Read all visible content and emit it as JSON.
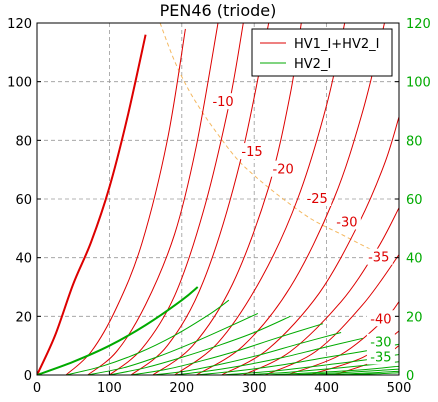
{
  "chart_data": {
    "type": "line",
    "title": "PEN46  (triode)",
    "xlabel": "",
    "ylabel": "",
    "xlim": [
      0,
      500
    ],
    "ylim": [
      0,
      120
    ],
    "right_ylim": [
      0,
      120
    ],
    "grid": true,
    "x_ticks": [
      "0",
      "100",
      "200",
      "300",
      "400",
      "500"
    ],
    "y_ticks": [
      "0",
      "20",
      "40",
      "60",
      "80",
      "100",
      "120"
    ],
    "right_y_ticks": [
      "0",
      "20",
      "40",
      "60",
      "80",
      "100",
      "120"
    ],
    "legend": {
      "position": "top-right",
      "entries": [
        {
          "label": "HV1_I+HV2_I",
          "color": "#dd0000"
        },
        {
          "label": "HV2_I",
          "color": "#00aa00"
        }
      ]
    },
    "colors": {
      "total": "#dd0000",
      "screen": "#00aa00",
      "max_dissipation": "#f4b860",
      "axes": "#000000",
      "grid": "#9a9a9a",
      "right_ticks": "#00aa00"
    },
    "series": [
      {
        "group": "total",
        "grid_v": 0,
        "x": [
          0,
          25,
          50,
          75,
          100,
          125,
          150
        ],
        "y": [
          0,
          13.5,
          31,
          45.5,
          64,
          88,
          116
        ],
        "bold": true
      },
      {
        "group": "total",
        "grid_v": -5,
        "x": [
          40,
          75,
          110,
          145,
          180,
          205
        ],
        "y": [
          0,
          8,
          23,
          45,
          80,
          118
        ]
      },
      {
        "group": "total",
        "grid_v": -10,
        "x": [
          70,
          110,
          150,
          190,
          220,
          250
        ],
        "y": [
          0,
          8,
          24,
          48,
          78,
          120
        ]
      },
      {
        "group": "total",
        "grid_v": -15,
        "x": [
          100,
          145,
          190,
          230,
          265,
          285
        ],
        "y": [
          0,
          9,
          27,
          56,
          92,
          120
        ]
      },
      {
        "group": "total",
        "grid_v": -20,
        "x": [
          130,
          180,
          230,
          280,
          320
        ],
        "y": [
          0,
          10,
          32,
          72,
          120
        ]
      },
      {
        "group": "total",
        "grid_v": -25,
        "x": [
          160,
          215,
          270,
          320,
          350,
          365
        ],
        "y": [
          0,
          10,
          31,
          64,
          96,
          120
        ]
      },
      {
        "group": "total",
        "grid_v": -30,
        "x": [
          190,
          250,
          310,
          360,
          400,
          425
        ],
        "y": [
          0,
          11,
          33,
          60,
          92,
          120
        ]
      },
      {
        "group": "total",
        "grid_v": -35,
        "x": [
          220,
          285,
          350,
          410,
          450,
          480
        ],
        "y": [
          0,
          10,
          30,
          60,
          90,
          120
        ]
      },
      {
        "group": "total",
        "grid_v": -40,
        "x": [
          255,
          320,
          390,
          445,
          480,
          500
        ],
        "y": [
          0,
          9,
          28,
          52,
          72,
          88
        ]
      },
      {
        "group": "total",
        "grid_v": -45,
        "x": [
          285,
          350,
          420,
          470,
          500
        ],
        "y": [
          0,
          8,
          25,
          43,
          57
        ]
      },
      {
        "group": "total",
        "grid_v": -50,
        "x": [
          315,
          385,
          450,
          500
        ],
        "y": [
          0,
          8,
          24,
          41
        ]
      },
      {
        "group": "total",
        "grid_v": -55,
        "x": [
          345,
          420,
          480,
          500
        ],
        "y": [
          0,
          7,
          19,
          25
        ]
      },
      {
        "group": "total",
        "grid_v": -60,
        "x": [
          375,
          450,
          500
        ],
        "y": [
          0,
          6,
          15
        ]
      },
      {
        "group": "total",
        "grid_v": -65,
        "x": [
          410,
          470,
          500
        ],
        "y": [
          0,
          5,
          10
        ]
      },
      {
        "group": "screen",
        "grid_v": 0,
        "x": [
          0,
          50,
          100,
          150,
          200,
          222
        ],
        "y": [
          0,
          4.5,
          10,
          17,
          25.5,
          30
        ],
        "bold": true
      },
      {
        "group": "screen",
        "grid_v": -5,
        "x": [
          40,
          90,
          140,
          190,
          240,
          265
        ],
        "y": [
          0,
          3,
          7.5,
          13.5,
          21,
          25.5
        ]
      },
      {
        "group": "screen",
        "grid_v": -10,
        "x": [
          70,
          120,
          170,
          220,
          270,
          305
        ],
        "y": [
          0,
          2.5,
          6.5,
          11.5,
          17,
          21
        ]
      },
      {
        "group": "screen",
        "grid_v": -15,
        "x": [
          100,
          150,
          200,
          250,
          300,
          350
        ],
        "y": [
          0,
          2.5,
          6,
          10,
          14.5,
          20
        ]
      },
      {
        "group": "screen",
        "grid_v": -20,
        "x": [
          130,
          180,
          230,
          280,
          330,
          395
        ],
        "y": [
          0,
          2,
          5,
          8.5,
          12.5,
          17.5
        ]
      },
      {
        "group": "screen",
        "grid_v": -25,
        "x": [
          160,
          210,
          260,
          310,
          360,
          420
        ],
        "y": [
          0,
          1.5,
          4,
          7,
          10.5,
          14.5
        ]
      },
      {
        "group": "screen",
        "grid_v": -30,
        "x": [
          190,
          240,
          290,
          340,
          390,
          450
        ],
        "y": [
          0,
          1.5,
          3.5,
          6,
          9,
          12.5
        ]
      },
      {
        "group": "screen",
        "grid_v": -35,
        "x": [
          220,
          280,
          340,
          400,
          460,
          500
        ],
        "y": [
          0,
          1.5,
          3.5,
          6,
          8.5,
          10.5
        ]
      },
      {
        "group": "screen",
        "grid_v": -40,
        "x": [
          255,
          320,
          385,
          450,
          500
        ],
        "y": [
          0,
          1.2,
          3,
          5,
          7
        ]
      },
      {
        "group": "screen",
        "grid_v": -45,
        "x": [
          285,
          350,
          420,
          500
        ],
        "y": [
          0,
          1,
          2.5,
          4.5
        ]
      },
      {
        "group": "screen",
        "grid_v": -50,
        "x": [
          315,
          390,
          460,
          500
        ],
        "y": [
          0,
          0.9,
          2,
          3
        ]
      },
      {
        "group": "screen",
        "grid_v": -55,
        "x": [
          345,
          420,
          500
        ],
        "y": [
          0,
          0.8,
          2
        ]
      },
      {
        "group": "screen",
        "grid_v": -60,
        "x": [
          375,
          450,
          500
        ],
        "y": [
          0,
          0.6,
          1.3
        ]
      },
      {
        "group": "screen",
        "grid_v": -65,
        "x": [
          410,
          470,
          500
        ],
        "y": [
          0,
          0.4,
          0.8
        ]
      }
    ],
    "max_dissipation_curve": {
      "x": [
        170,
        190,
        210,
        230,
        250,
        275,
        300,
        340,
        380,
        420,
        460,
        490
      ],
      "y": [
        120,
        107,
        97,
        89,
        82,
        74,
        68,
        60,
        53,
        48,
        43,
        40
      ]
    },
    "annotations": [
      {
        "text": "-10",
        "x": 257,
        "y": 93,
        "color": "#dd0000"
      },
      {
        "text": "-15",
        "x": 297,
        "y": 76,
        "color": "#dd0000"
      },
      {
        "text": "-20",
        "x": 340,
        "y": 70,
        "color": "#dd0000"
      },
      {
        "text": "-25",
        "x": 387,
        "y": 60,
        "color": "#dd0000"
      },
      {
        "text": "-30",
        "x": 428,
        "y": 52,
        "color": "#dd0000"
      },
      {
        "text": "-35",
        "x": 472,
        "y": 40,
        "color": "#dd0000"
      },
      {
        "text": "-40",
        "x": 475,
        "y": 19,
        "color": "#dd0000"
      },
      {
        "text": "-30",
        "x": 475,
        "y": 11,
        "color": "#00aa00"
      },
      {
        "text": "-35",
        "x": 475,
        "y": 6,
        "color": "#00aa00"
      }
    ]
  }
}
